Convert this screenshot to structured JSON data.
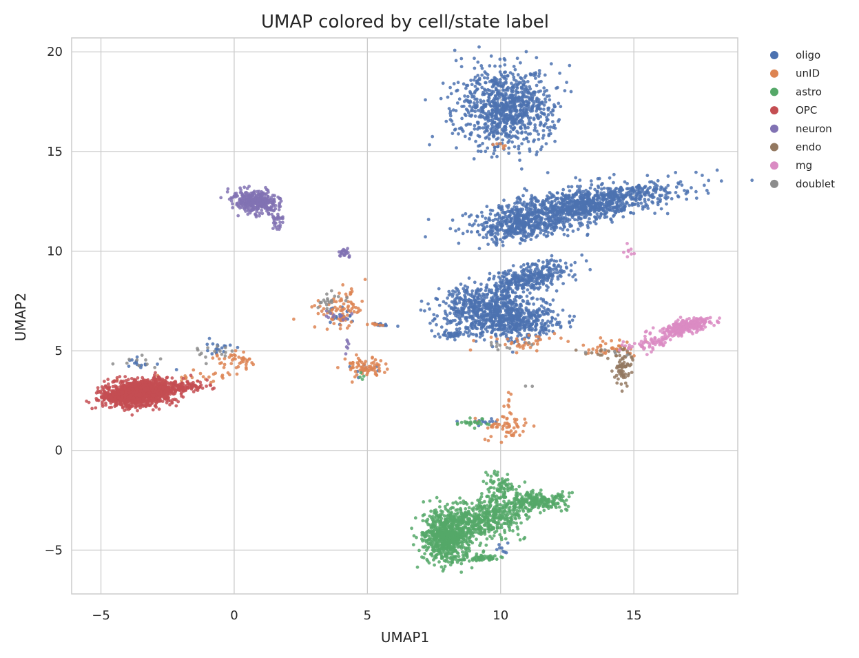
{
  "chart_data": {
    "type": "scatter",
    "title": "UMAP colored by cell/state label",
    "xlabel": "UMAP1",
    "ylabel": "UMAP2",
    "xlim": [
      -6.1,
      18.9
    ],
    "ylim": [
      -7.2,
      20.7
    ],
    "xticks": [
      -5,
      0,
      5,
      10,
      15
    ],
    "yticks": [
      -5,
      0,
      5,
      10,
      15,
      20
    ],
    "xtick_labels": [
      "−5",
      "0",
      "5",
      "10",
      "15"
    ],
    "ytick_labels": [
      "−5",
      "0",
      "5",
      "10",
      "15",
      "20"
    ],
    "grid": true,
    "legend_position": "outside-right",
    "series": [
      {
        "name": "oligo",
        "color": "#4c72b0",
        "clusters": [
          {
            "cx": 10.2,
            "cy": 17.2,
            "sx": 0.9,
            "sy": 1.0,
            "n": 900,
            "rho": 0
          },
          {
            "cx": 13.0,
            "cy": 12.3,
            "sx": 1.7,
            "sy": 0.55,
            "n": 1100,
            "rho": 0.6
          },
          {
            "cx": 10.8,
            "cy": 11.3,
            "sx": 0.9,
            "sy": 0.45,
            "n": 350,
            "rho": 0.3
          },
          {
            "cx": 9.3,
            "cy": 7.2,
            "sx": 0.85,
            "sy": 0.55,
            "n": 500,
            "rho": 0.1
          },
          {
            "cx": 10.6,
            "cy": 6.5,
            "sx": 0.8,
            "sy": 0.45,
            "n": 450,
            "rho": 0
          },
          {
            "cx": 11.0,
            "cy": 8.6,
            "sx": 0.8,
            "sy": 0.45,
            "n": 350,
            "rho": 0.6
          },
          {
            "cx": 8.3,
            "cy": 5.8,
            "sx": 0.35,
            "sy": 0.1,
            "n": 40,
            "rho": 0
          },
          {
            "cx": 5.6,
            "cy": 6.3,
            "sx": 0.2,
            "sy": 0.06,
            "n": 12,
            "rho": 0
          },
          {
            "cx": 4.1,
            "cy": 6.8,
            "sx": 0.3,
            "sy": 0.25,
            "n": 20,
            "rho": 0
          },
          {
            "cx": -0.5,
            "cy": 5.2,
            "sx": 0.35,
            "sy": 0.2,
            "n": 18,
            "rho": 0
          },
          {
            "cx": -3.5,
            "cy": 4.3,
            "sx": 0.5,
            "sy": 0.2,
            "n": 15,
            "rho": 0
          },
          {
            "cx": 4.8,
            "cy": 4.2,
            "sx": 0.3,
            "sy": 0.2,
            "n": 10,
            "rho": 0
          },
          {
            "cx": 9.3,
            "cy": 1.5,
            "sx": 0.4,
            "sy": 0.08,
            "n": 12,
            "rho": 0
          },
          {
            "cx": 10.0,
            "cy": -4.9,
            "sx": 0.15,
            "sy": 0.2,
            "n": 8,
            "rho": 0
          }
        ]
      },
      {
        "name": "unID",
        "color": "#dd8452",
        "clusters": [
          {
            "cx": 4.0,
            "cy": 7.0,
            "sx": 0.45,
            "sy": 0.55,
            "n": 80,
            "rho": 0
          },
          {
            "cx": 4.9,
            "cy": 4.2,
            "sx": 0.35,
            "sy": 0.25,
            "n": 70,
            "rho": 0
          },
          {
            "cx": 0.1,
            "cy": 4.5,
            "sx": 0.45,
            "sy": 0.2,
            "n": 40,
            "rho": 0
          },
          {
            "cx": -1.5,
            "cy": 3.6,
            "sx": 0.9,
            "sy": 0.25,
            "n": 30,
            "rho": 0.6
          },
          {
            "cx": 10.2,
            "cy": 1.2,
            "sx": 0.4,
            "sy": 0.35,
            "n": 55,
            "rho": 0
          },
          {
            "cx": 10.3,
            "cy": 2.4,
            "sx": 0.12,
            "sy": 0.35,
            "n": 8,
            "rho": 0
          },
          {
            "cx": 14.2,
            "cy": 5.1,
            "sx": 0.55,
            "sy": 0.2,
            "n": 40,
            "rho": 0
          },
          {
            "cx": 10.6,
            "cy": 5.4,
            "sx": 0.7,
            "sy": 0.2,
            "n": 35,
            "rho": 0
          },
          {
            "cx": 10.0,
            "cy": 15.3,
            "sx": 0.2,
            "sy": 0.1,
            "n": 6,
            "rho": 0
          },
          {
            "cx": 5.3,
            "cy": 6.3,
            "sx": 0.2,
            "sy": 0.05,
            "n": 8,
            "rho": 0
          },
          {
            "cx": -3.3,
            "cy": 3.0,
            "sx": 0.6,
            "sy": 0.3,
            "n": 20,
            "rho": 0
          }
        ]
      },
      {
        "name": "astro",
        "color": "#55a868",
        "clusters": [
          {
            "cx": 8.0,
            "cy": -4.3,
            "sx": 0.45,
            "sy": 0.65,
            "n": 700,
            "rho": 0
          },
          {
            "cx": 9.5,
            "cy": -3.4,
            "sx": 0.8,
            "sy": 0.55,
            "n": 500,
            "rho": 0.4
          },
          {
            "cx": 11.5,
            "cy": -2.5,
            "sx": 0.55,
            "sy": 0.2,
            "n": 200,
            "rho": 0
          },
          {
            "cx": 10.0,
            "cy": -1.8,
            "sx": 0.3,
            "sy": 0.35,
            "n": 80,
            "rho": 0
          },
          {
            "cx": 9.3,
            "cy": -5.4,
            "sx": 0.45,
            "sy": 0.1,
            "n": 50,
            "rho": 0
          },
          {
            "cx": 9.0,
            "cy": 1.4,
            "sx": 0.3,
            "sy": 0.1,
            "n": 25,
            "rho": 0
          },
          {
            "cx": 4.8,
            "cy": 3.7,
            "sx": 0.1,
            "sy": 0.1,
            "n": 4,
            "rho": 0
          }
        ]
      },
      {
        "name": "OPC",
        "color": "#c44e52",
        "clusters": [
          {
            "cx": -3.5,
            "cy": 2.9,
            "sx": 0.65,
            "sy": 0.32,
            "n": 1300,
            "rho": 0.25
          },
          {
            "cx": -4.4,
            "cy": 2.7,
            "sx": 0.3,
            "sy": 0.12,
            "n": 200,
            "rho": 0
          },
          {
            "cx": -1.8,
            "cy": 3.2,
            "sx": 0.4,
            "sy": 0.12,
            "n": 80,
            "rho": 0.3
          }
        ]
      },
      {
        "name": "neuron",
        "color": "#8172b3",
        "clusters": [
          {
            "cx": 0.8,
            "cy": 12.5,
            "sx": 0.4,
            "sy": 0.3,
            "n": 350,
            "rho": -0.2
          },
          {
            "cx": 1.6,
            "cy": 11.4,
            "sx": 0.12,
            "sy": 0.3,
            "n": 30,
            "rho": 0
          },
          {
            "cx": 4.1,
            "cy": 9.9,
            "sx": 0.12,
            "sy": 0.1,
            "n": 25,
            "rho": 0
          },
          {
            "cx": 3.9,
            "cy": 6.8,
            "sx": 0.3,
            "sy": 0.2,
            "n": 12,
            "rho": 0
          },
          {
            "cx": 4.3,
            "cy": 5.2,
            "sx": 0.06,
            "sy": 0.35,
            "n": 6,
            "rho": 0
          }
        ]
      },
      {
        "name": "endo",
        "color": "#937860",
        "clusters": [
          {
            "cx": 14.6,
            "cy": 4.2,
            "sx": 0.15,
            "sy": 0.4,
            "n": 70,
            "rho": 0
          },
          {
            "cx": 13.7,
            "cy": 4.9,
            "sx": 0.35,
            "sy": 0.15,
            "n": 10,
            "rho": 0
          }
        ]
      },
      {
        "name": "mg",
        "color": "#da8bc3",
        "clusters": [
          {
            "cx": 16.9,
            "cy": 6.2,
            "sx": 0.5,
            "sy": 0.22,
            "n": 280,
            "rho": 0.5
          },
          {
            "cx": 15.7,
            "cy": 5.4,
            "sx": 0.45,
            "sy": 0.18,
            "n": 60,
            "rho": 0.3
          },
          {
            "cx": 14.8,
            "cy": 10.0,
            "sx": 0.12,
            "sy": 0.2,
            "n": 8,
            "rho": 0
          }
        ]
      },
      {
        "name": "doublet",
        "color": "#8c8c8c",
        "clusters": [
          {
            "cx": 3.5,
            "cy": 7.5,
            "sx": 0.35,
            "sy": 0.25,
            "n": 20,
            "rho": 0
          },
          {
            "cx": -0.6,
            "cy": 4.9,
            "sx": 0.4,
            "sy": 0.3,
            "n": 15,
            "rho": 0
          },
          {
            "cx": -3.4,
            "cy": 4.4,
            "sx": 0.5,
            "sy": 0.15,
            "n": 10,
            "rho": 0
          },
          {
            "cx": 10.5,
            "cy": 5.3,
            "sx": 0.5,
            "sy": 0.15,
            "n": 10,
            "rho": 0
          },
          {
            "cx": 14.2,
            "cy": 4.9,
            "sx": 0.4,
            "sy": 0.1,
            "n": 5,
            "rho": 0
          },
          {
            "cx": 11.0,
            "cy": 3.3,
            "sx": 0.1,
            "sy": 0.1,
            "n": 2,
            "rho": 0
          }
        ]
      }
    ]
  }
}
